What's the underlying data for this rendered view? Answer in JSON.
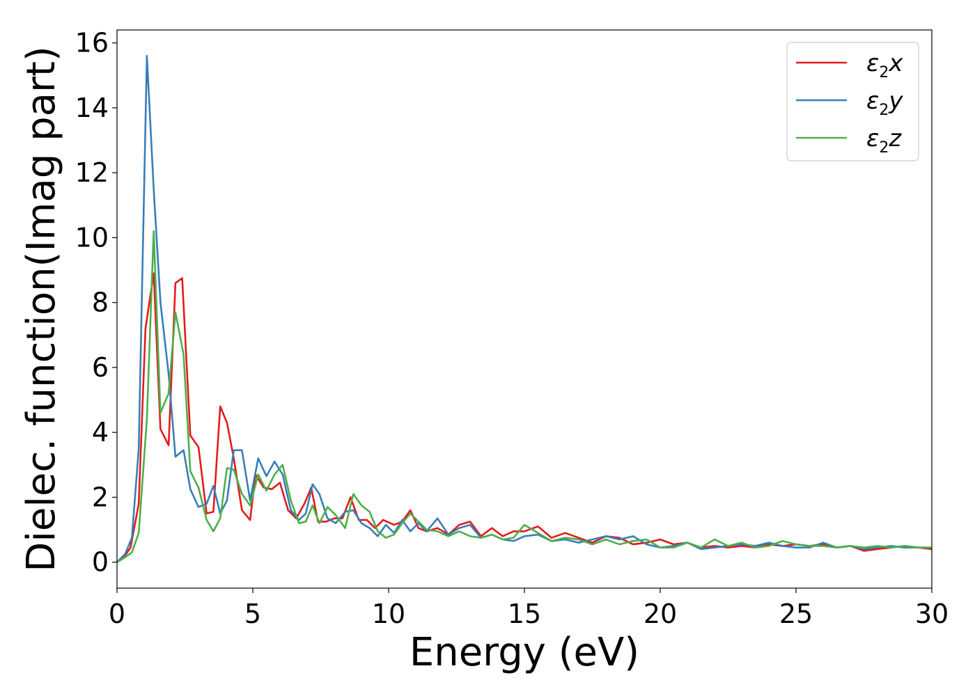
{
  "chart_data": {
    "type": "line",
    "title": "",
    "xlabel": "Energy (eV)",
    "ylabel": "Dielec. function(Imag part)",
    "xlim": [
      0,
      30
    ],
    "ylim": [
      -0.8,
      16.4
    ],
    "xticks": [
      0,
      5,
      10,
      15,
      20,
      25,
      30
    ],
    "yticks": [
      0,
      2,
      4,
      6,
      8,
      10,
      12,
      14,
      16
    ],
    "grid": false,
    "legend_position": "top-right",
    "series": [
      {
        "name": "ε2x",
        "legend": {
          "symbol": "ε",
          "sub": "2",
          "axis": "x"
        },
        "color": "#e41a1c",
        "x": [
          0,
          0.25,
          0.5,
          0.8,
          1.05,
          1.35,
          1.6,
          1.9,
          2.15,
          2.4,
          2.7,
          3.0,
          3.3,
          3.55,
          3.8,
          4.05,
          4.3,
          4.6,
          4.9,
          5.1,
          5.4,
          5.7,
          6.0,
          6.3,
          6.6,
          6.9,
          7.15,
          7.4,
          7.7,
          8.0,
          8.3,
          8.6,
          8.9,
          9.2,
          9.5,
          9.8,
          10.2,
          10.5,
          10.8,
          11.1,
          11.4,
          11.8,
          12.2,
          12.6,
          13.0,
          13.4,
          13.8,
          14.2,
          14.6,
          15.0,
          15.5,
          16.0,
          16.5,
          17.0,
          17.5,
          18.0,
          18.5,
          19.0,
          19.5,
          20.0,
          20.5,
          21.0,
          21.5,
          22.0,
          22.5,
          23.0,
          23.5,
          24.0,
          24.5,
          25.0,
          25.5,
          26.0,
          26.5,
          27.0,
          27.5,
          28.0,
          28.5,
          29.0,
          29.5,
          30.0
        ],
        "y": [
          0.0,
          0.15,
          0.45,
          1.8,
          7.2,
          8.9,
          4.1,
          3.6,
          8.6,
          8.75,
          3.9,
          3.55,
          1.5,
          1.55,
          4.8,
          4.3,
          3.2,
          1.6,
          1.3,
          2.7,
          2.3,
          2.25,
          2.45,
          1.6,
          1.35,
          1.8,
          2.3,
          1.25,
          1.25,
          1.35,
          1.35,
          2.0,
          1.3,
          1.3,
          1.05,
          1.3,
          1.15,
          1.25,
          1.6,
          1.05,
          0.95,
          1.05,
          0.85,
          1.15,
          1.25,
          0.8,
          1.05,
          0.8,
          0.95,
          0.95,
          1.1,
          0.75,
          0.9,
          0.75,
          0.6,
          0.8,
          0.75,
          0.55,
          0.6,
          0.7,
          0.55,
          0.6,
          0.45,
          0.5,
          0.45,
          0.5,
          0.45,
          0.55,
          0.5,
          0.55,
          0.5,
          0.55,
          0.45,
          0.5,
          0.35,
          0.4,
          0.45,
          0.5,
          0.45,
          0.4
        ]
      },
      {
        "name": "ε2y",
        "legend": {
          "symbol": "ε",
          "sub": "2",
          "axis": "y"
        },
        "color": "#377eb8",
        "x": [
          0,
          0.3,
          0.55,
          0.8,
          1.1,
          1.35,
          1.6,
          1.9,
          2.15,
          2.45,
          2.7,
          3.0,
          3.3,
          3.55,
          3.8,
          4.05,
          4.3,
          4.6,
          4.9,
          5.2,
          5.5,
          5.8,
          6.1,
          6.4,
          6.7,
          6.95,
          7.2,
          7.45,
          7.75,
          8.05,
          8.4,
          8.7,
          9.0,
          9.3,
          9.6,
          9.9,
          10.2,
          10.5,
          10.8,
          11.1,
          11.4,
          11.8,
          12.2,
          12.6,
          13.0,
          13.4,
          13.8,
          14.2,
          14.6,
          15.0,
          15.5,
          16.0,
          16.5,
          17.0,
          17.5,
          18.0,
          18.5,
          19.0,
          19.5,
          20.0,
          20.5,
          21.0,
          21.5,
          22.0,
          22.5,
          23.0,
          23.5,
          24.0,
          24.5,
          25.0,
          25.5,
          26.0,
          26.5,
          27.0,
          27.5,
          28.0,
          28.5,
          29.0,
          29.5,
          30.0
        ],
        "y": [
          0.0,
          0.25,
          0.75,
          3.5,
          15.6,
          11.5,
          8.0,
          5.8,
          3.25,
          3.45,
          2.25,
          1.7,
          1.8,
          2.35,
          1.5,
          1.9,
          3.45,
          3.45,
          1.9,
          3.2,
          2.65,
          3.1,
          2.7,
          1.6,
          1.3,
          1.5,
          2.4,
          2.1,
          1.35,
          1.2,
          1.55,
          1.6,
          1.2,
          1.05,
          0.8,
          1.15,
          0.9,
          1.3,
          0.95,
          1.2,
          0.95,
          1.35,
          0.85,
          1.05,
          1.15,
          0.75,
          0.85,
          0.7,
          0.65,
          0.8,
          0.85,
          0.65,
          0.7,
          0.6,
          0.7,
          0.8,
          0.7,
          0.8,
          0.55,
          0.45,
          0.5,
          0.6,
          0.4,
          0.45,
          0.5,
          0.55,
          0.5,
          0.6,
          0.5,
          0.45,
          0.45,
          0.6,
          0.45,
          0.5,
          0.4,
          0.45,
          0.5,
          0.45,
          0.45,
          0.45
        ]
      },
      {
        "name": "ε2z",
        "legend": {
          "symbol": "ε",
          "sub": "2",
          "axis": "z"
        },
        "color": "#4daf4a",
        "x": [
          0,
          0.3,
          0.55,
          0.8,
          1.1,
          1.35,
          1.6,
          1.9,
          2.15,
          2.45,
          2.7,
          3.0,
          3.3,
          3.55,
          3.8,
          4.05,
          4.3,
          4.6,
          4.9,
          5.2,
          5.5,
          5.8,
          6.1,
          6.4,
          6.7,
          6.95,
          7.2,
          7.45,
          7.75,
          8.05,
          8.4,
          8.7,
          9.0,
          9.3,
          9.6,
          9.9,
          10.2,
          10.5,
          10.8,
          11.1,
          11.4,
          11.8,
          12.2,
          12.6,
          13.0,
          13.4,
          13.8,
          14.2,
          14.6,
          15.0,
          15.5,
          16.0,
          16.5,
          17.0,
          17.5,
          18.0,
          18.5,
          19.0,
          19.5,
          20.0,
          20.5,
          21.0,
          21.5,
          22.0,
          22.5,
          23.0,
          23.5,
          24.0,
          24.5,
          25.0,
          25.5,
          26.0,
          26.5,
          27.0,
          27.5,
          28.0,
          28.5,
          29.0,
          29.5,
          30.0
        ],
        "y": [
          0.0,
          0.15,
          0.3,
          0.9,
          4.4,
          10.2,
          4.6,
          5.2,
          7.7,
          6.4,
          2.8,
          2.3,
          1.3,
          0.95,
          1.35,
          2.9,
          2.85,
          2.1,
          1.75,
          2.7,
          2.2,
          2.7,
          3.0,
          1.9,
          1.2,
          1.25,
          1.75,
          1.2,
          1.7,
          1.45,
          1.05,
          2.1,
          1.75,
          1.55,
          0.95,
          0.75,
          0.85,
          1.2,
          1.5,
          1.25,
          1.0,
          0.95,
          0.8,
          0.95,
          0.8,
          0.75,
          0.85,
          0.7,
          0.75,
          1.15,
          0.9,
          0.65,
          0.75,
          0.7,
          0.55,
          0.7,
          0.55,
          0.65,
          0.7,
          0.45,
          0.45,
          0.6,
          0.45,
          0.7,
          0.5,
          0.6,
          0.45,
          0.5,
          0.65,
          0.55,
          0.5,
          0.5,
          0.45,
          0.5,
          0.45,
          0.5,
          0.45,
          0.5,
          0.45,
          0.45
        ]
      }
    ]
  }
}
